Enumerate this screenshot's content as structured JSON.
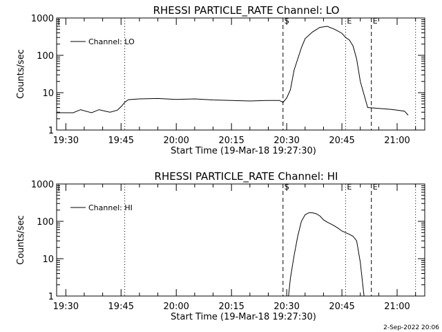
{
  "footer": {
    "stamp": "2-Sep-2022 20:06"
  },
  "colors": {
    "background": "#ffffff",
    "foreground": "#000000"
  },
  "chart_data": [
    {
      "type": "line",
      "title": "RHESSI PARTICLE_RATE Channel: LO",
      "xlabel": "Start Time (19-Mar-18 19:27:30)",
      "ylabel": "Counts/sec",
      "yscale": "log",
      "ylim": [
        1,
        1000
      ],
      "xlim": [
        "19:27:30",
        "21:07:30"
      ],
      "x_ticks": [
        "19:30",
        "19:45",
        "20:00",
        "20:15",
        "20:30",
        "20:45",
        "21:00"
      ],
      "y_ticks": [
        "1",
        "10",
        "100",
        "1000"
      ],
      "legend": {
        "label": "Channel: LO",
        "position": "top-left"
      },
      "markers": [
        {
          "label": "S",
          "time": "20:29",
          "style": "dashed"
        },
        {
          "label": "E",
          "time": "20:53",
          "style": "dashed"
        },
        {
          "label": "",
          "time": "19:46",
          "style": "dotted"
        },
        {
          "label": "E",
          "time": "20:46",
          "style": "dotted"
        },
        {
          "label": "",
          "time": "21:05",
          "style": "dotted"
        }
      ],
      "series": [
        {
          "name": "Channel: LO",
          "x": [
            "19:27:30",
            "19:32",
            "19:34",
            "19:37",
            "19:39",
            "19:42",
            "19:44",
            "19:45",
            "19:46",
            "19:47",
            "19:50",
            "19:55",
            "20:00",
            "20:05",
            "20:10",
            "20:15",
            "20:20",
            "20:25",
            "20:28",
            "20:29",
            "20:30",
            "20:31",
            "20:32",
            "20:34",
            "20:35",
            "20:37",
            "20:39",
            "20:41",
            "20:43",
            "20:45",
            "20:46",
            "20:47",
            "20:48",
            "20:49",
            "20:50",
            "20:52",
            "20:55",
            "20:58",
            "21:00",
            "21:02",
            "21:03"
          ],
          "y": [
            2.9,
            2.9,
            3.5,
            2.9,
            3.5,
            3.0,
            3.4,
            4.2,
            5.5,
            6.5,
            6.8,
            7.0,
            6.6,
            6.8,
            6.4,
            6.2,
            6.0,
            6.2,
            6.2,
            5.5,
            7.2,
            12,
            40,
            160,
            280,
            420,
            560,
            600,
            500,
            390,
            300,
            260,
            180,
            80,
            20,
            4.0,
            3.8,
            3.6,
            3.4,
            3.2,
            2.5
          ]
        }
      ]
    },
    {
      "type": "line",
      "title": "RHESSI PARTICLE_RATE Channel: HI",
      "xlabel": "Start Time (19-Mar-18 19:27:30)",
      "ylabel": "Counts/sec",
      "yscale": "log",
      "ylim": [
        1,
        1000
      ],
      "xlim": [
        "19:27:30",
        "21:07:30"
      ],
      "x_ticks": [
        "19:30",
        "19:45",
        "20:00",
        "20:15",
        "20:30",
        "20:45",
        "21:00"
      ],
      "y_ticks": [
        "1",
        "10",
        "100",
        "1000"
      ],
      "legend": {
        "label": "Channel: HI",
        "position": "top-left"
      },
      "markers": [
        {
          "label": "S",
          "time": "20:29",
          "style": "dashed"
        },
        {
          "label": "E",
          "time": "20:53",
          "style": "dashed"
        },
        {
          "label": "",
          "time": "19:46",
          "style": "dotted"
        },
        {
          "label": "E",
          "time": "20:46",
          "style": "dotted"
        },
        {
          "label": "",
          "time": "21:05",
          "style": "dotted"
        }
      ],
      "series": [
        {
          "name": "Channel: HI",
          "x": [
            "20:30:30",
            "20:31",
            "20:32",
            "20:33",
            "20:34",
            "20:35",
            "20:36",
            "20:37",
            "20:38",
            "20:39",
            "20:40",
            "20:41",
            "20:42",
            "20:43",
            "20:44",
            "20:45",
            "20:46",
            "20:47",
            "20:48",
            "20:49",
            "20:50",
            "20:51"
          ],
          "y": [
            1.0,
            3,
            12,
            40,
            100,
            150,
            170,
            170,
            160,
            140,
            110,
            95,
            85,
            75,
            65,
            55,
            50,
            45,
            40,
            30,
            8,
            1.0
          ]
        }
      ]
    }
  ]
}
